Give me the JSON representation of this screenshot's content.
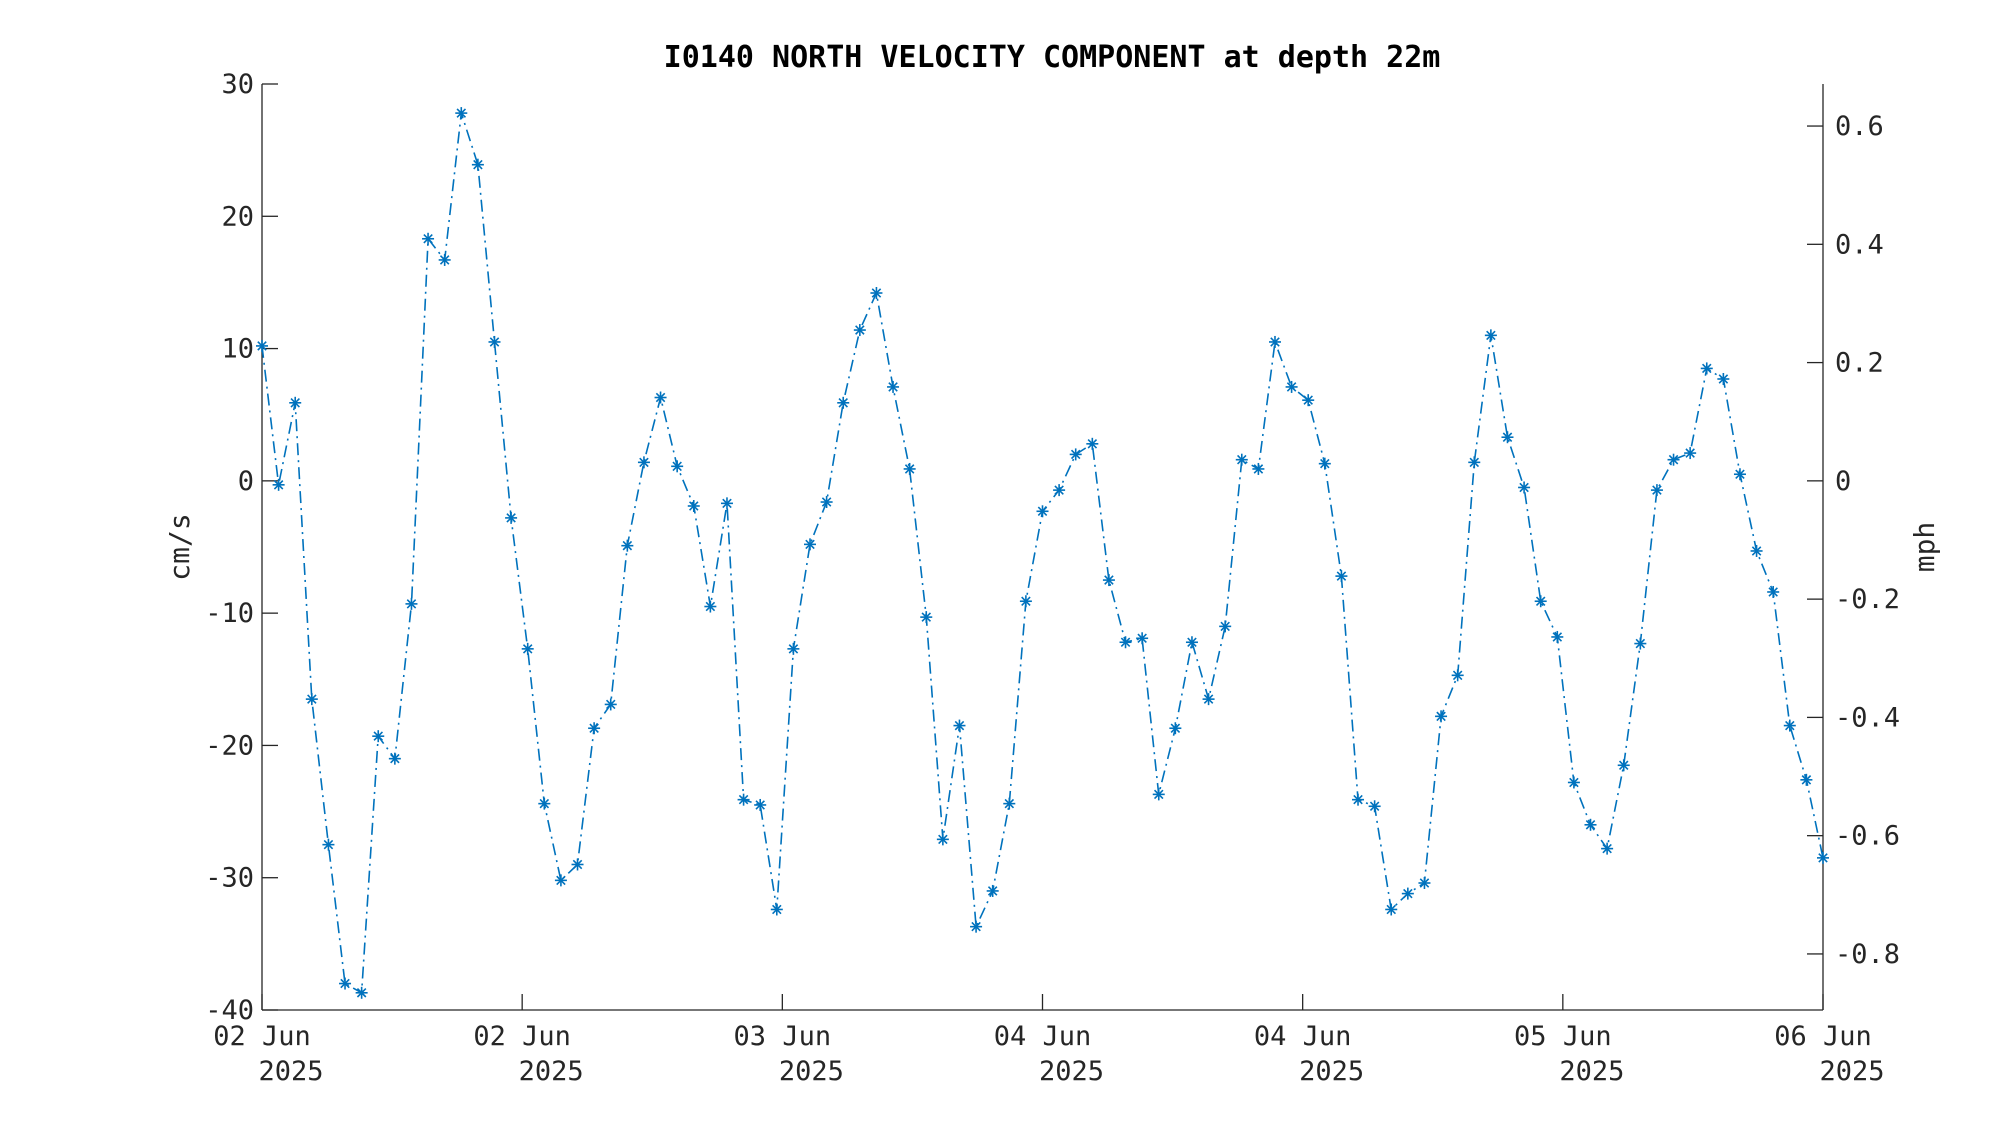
{
  "chart_data": {
    "type": "line",
    "title": "I0140 NORTH VELOCITY COMPONENT at depth 22m",
    "ylabel": "cm/s",
    "ylabel_right": "mph",
    "ylim": [
      -40,
      30
    ],
    "yticks": [
      -40,
      -30,
      -20,
      -10,
      0,
      10,
      20,
      30
    ],
    "ylim_right": [
      -0.8948,
      0.6711
    ],
    "yticks_right": [
      -0.8,
      -0.6,
      -0.4,
      -0.2,
      0,
      0.2,
      0.4,
      0.6
    ],
    "ytick_labels_right": [
      "-0.8",
      "-0.6",
      "-0.4",
      "-0.2",
      "0",
      "0.2",
      "0.4",
      "0.6"
    ],
    "xlim": [
      "2025-06-02 00:00",
      "2025-06-06 00:00"
    ],
    "xticks": [
      {
        "line1": "02 Jun",
        "line2": "2025"
      },
      {
        "line1": "02 Jun",
        "line2": "2025"
      },
      {
        "line1": "03 Jun",
        "line2": "2025"
      },
      {
        "line1": "04 Jun",
        "line2": "2025"
      },
      {
        "line1": "04 Jun",
        "line2": "2025"
      },
      {
        "line1": "05 Jun",
        "line2": "2025"
      },
      {
        "line1": "06 Jun",
        "line2": "2025"
      }
    ],
    "marker": "asterisk",
    "line_style": "dash-dot",
    "grid": false,
    "series": [
      {
        "color": "#0072BD",
        "values": [
          10.2,
          -0.3,
          5.9,
          -16.5,
          -27.5,
          -38.0,
          -38.7,
          -19.3,
          -21.0,
          -9.3,
          18.3,
          16.7,
          27.8,
          23.9,
          10.5,
          -2.8,
          -12.7,
          -24.4,
          -30.2,
          -29.0,
          -18.7,
          -16.9,
          -4.9,
          1.4,
          6.3,
          1.1,
          -1.9,
          -9.5,
          -1.7,
          -24.1,
          -24.5,
          -32.4,
          -12.7,
          -4.8,
          -1.6,
          5.9,
          11.4,
          14.2,
          7.1,
          0.9,
          -10.3,
          -27.1,
          -18.5,
          -33.7,
          -31.0,
          -24.4,
          -9.1,
          -2.3,
          -0.7,
          2.0,
          2.8,
          -7.5,
          -12.2,
          -11.9,
          -23.7,
          -18.7,
          -12.2,
          -16.5,
          -11.0,
          1.6,
          0.9,
          10.5,
          7.1,
          6.1,
          1.3,
          -7.2,
          -24.1,
          -24.6,
          -32.4,
          -31.2,
          -30.4,
          -17.8,
          -14.7,
          1.4,
          11.0,
          3.3,
          -0.5,
          -9.1,
          -11.8,
          -22.8,
          -26.0,
          -27.8,
          -21.5,
          -12.3,
          -0.7,
          1.6,
          2.1,
          8.5,
          7.7,
          0.5,
          -5.3,
          -8.4,
          -18.5,
          -22.6,
          -28.5
        ]
      }
    ]
  }
}
